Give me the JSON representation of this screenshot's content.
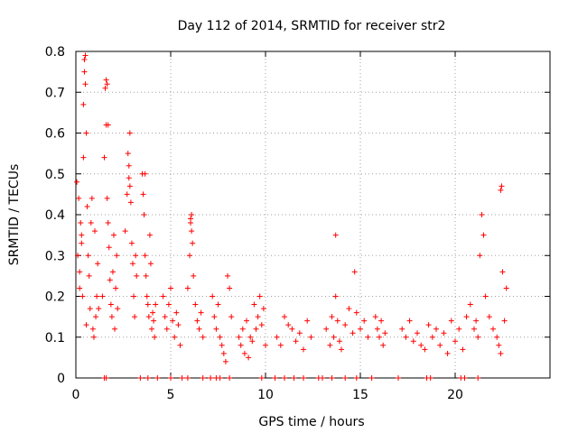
{
  "chart_data": {
    "type": "scatter",
    "title": "Day 112 of 2014, SRMTID for receiver str2",
    "xlabel": "GPS time / hours",
    "ylabel": "SRMTID / TECUs",
    "xlim": [
      0,
      25
    ],
    "ylim": [
      0,
      0.8
    ],
    "xticks": [
      "0",
      "5",
      "10",
      "15",
      "20"
    ],
    "xtick_values": [
      0,
      5,
      10,
      15,
      20
    ],
    "yticks": [
      "0",
      "0.1",
      "0.2",
      "0.3",
      "0.4",
      "0.5",
      "0.6",
      "0.7",
      "0.8"
    ],
    "ytick_values": [
      0,
      0.1,
      0.2,
      0.3,
      0.4,
      0.5,
      0.6,
      0.7,
      0.8
    ],
    "grid": true,
    "marker": "plus",
    "series_color": "#ff0000",
    "series": [
      {
        "name": "str2",
        "x": [
          0.05,
          0.1,
          0.15,
          0.2,
          0.25,
          0.3,
          0.35,
          0.4,
          0.45,
          0.5,
          0.5,
          0.55,
          0.6,
          0.65,
          0.7,
          0.75,
          0.8,
          0.85,
          0.9,
          0.95,
          1.0,
          1.05,
          1.1,
          1.15,
          1.2,
          0.2,
          0.3,
          0.4,
          0.45,
          0.55,
          1.4,
          1.5,
          1.55,
          1.6,
          1.65,
          1.7,
          1.75,
          1.8,
          1.85,
          1.9,
          1.95,
          2.0,
          2.05,
          2.1,
          2.15,
          2.2,
          1.6,
          1.65,
          1.7,
          2.6,
          2.7,
          2.75,
          2.8,
          2.85,
          2.9,
          2.95,
          3.0,
          3.05,
          3.1,
          3.15,
          3.2,
          2.8,
          2.85,
          3.5,
          3.55,
          3.6,
          3.65,
          3.7,
          3.75,
          3.8,
          3.85,
          3.9,
          3.95,
          4.0,
          4.05,
          4.1,
          4.15,
          4.2,
          3.65,
          4.6,
          4.7,
          4.8,
          4.9,
          5.0,
          5.1,
          5.2,
          5.3,
          5.4,
          5.5,
          5.9,
          6.0,
          6.05,
          6.1,
          6.15,
          6.2,
          6.3,
          6.4,
          6.5,
          6.6,
          6.7,
          6.05,
          6.1,
          7.2,
          7.3,
          7.4,
          7.5,
          7.6,
          7.7,
          7.8,
          7.9,
          8.0,
          8.1,
          8.2,
          8.6,
          8.7,
          8.8,
          8.9,
          9.0,
          9.1,
          9.2,
          9.3,
          9.4,
          9.5,
          9.6,
          9.7,
          9.8,
          9.9,
          10.0,
          10.6,
          10.8,
          11.0,
          11.2,
          11.4,
          11.6,
          11.8,
          12.0,
          12.2,
          12.4,
          13.2,
          13.4,
          13.5,
          13.6,
          13.7,
          13.8,
          13.9,
          14.0,
          14.2,
          14.4,
          14.6,
          14.8,
          15.0,
          15.2,
          15.4,
          13.7,
          14.7,
          15.8,
          15.9,
          16.0,
          16.1,
          16.2,
          16.3,
          17.2,
          17.4,
          17.6,
          17.8,
          18.0,
          18.2,
          18.4,
          18.6,
          18.8,
          19.0,
          19.2,
          19.4,
          19.6,
          19.8,
          20.0,
          20.2,
          20.4,
          20.6,
          20.8,
          21.0,
          21.1,
          21.2,
          21.3,
          21.4,
          21.5,
          21.6,
          21.8,
          22.0,
          22.2,
          22.3,
          22.4,
          22.5,
          22.6,
          22.7,
          22.4,
          22.45,
          1.5,
          1.6,
          3.4,
          3.8,
          4.3,
          5.0,
          5.6,
          5.9,
          6.7,
          7.1,
          7.4,
          7.6,
          8.1,
          9.8,
          10.5,
          11.0,
          11.5,
          12.0,
          12.8,
          13.0,
          13.5,
          14.2,
          14.8,
          15.6,
          17.0,
          18.5,
          18.7,
          20.3,
          20.5,
          21.2
        ],
        "y": [
          0.48,
          0.3,
          0.44,
          0.22,
          0.38,
          0.35,
          0.2,
          0.54,
          0.78,
          0.79,
          0.72,
          0.6,
          0.42,
          0.3,
          0.25,
          0.17,
          0.38,
          0.44,
          0.12,
          0.1,
          0.36,
          0.15,
          0.2,
          0.28,
          0.17,
          0.26,
          0.33,
          0.67,
          0.75,
          0.13,
          0.2,
          0.54,
          0.71,
          0.62,
          0.44,
          0.38,
          0.32,
          0.24,
          0.18,
          0.15,
          0.26,
          0.35,
          0.12,
          0.22,
          0.3,
          0.17,
          0.73,
          0.72,
          0.62,
          0.36,
          0.45,
          0.55,
          0.52,
          0.6,
          0.43,
          0.33,
          0.28,
          0.2,
          0.15,
          0.3,
          0.25,
          0.49,
          0.47,
          0.5,
          0.45,
          0.4,
          0.3,
          0.25,
          0.2,
          0.18,
          0.15,
          0.35,
          0.28,
          0.12,
          0.16,
          0.14,
          0.1,
          0.18,
          0.5,
          0.2,
          0.15,
          0.12,
          0.18,
          0.22,
          0.14,
          0.1,
          0.16,
          0.13,
          0.08,
          0.22,
          0.3,
          0.38,
          0.4,
          0.33,
          0.25,
          0.18,
          0.14,
          0.12,
          0.16,
          0.1,
          0.39,
          0.36,
          0.2,
          0.15,
          0.12,
          0.18,
          0.1,
          0.08,
          0.06,
          0.04,
          0.25,
          0.22,
          0.15,
          0.1,
          0.08,
          0.12,
          0.06,
          0.14,
          0.05,
          0.1,
          0.09,
          0.18,
          0.12,
          0.15,
          0.2,
          0.13,
          0.17,
          0.08,
          0.1,
          0.08,
          0.15,
          0.13,
          0.12,
          0.09,
          0.11,
          0.07,
          0.14,
          0.1,
          0.12,
          0.08,
          0.15,
          0.1,
          0.2,
          0.14,
          0.09,
          0.07,
          0.13,
          0.17,
          0.11,
          0.16,
          0.12,
          0.14,
          0.1,
          0.35,
          0.26,
          0.15,
          0.12,
          0.1,
          0.14,
          0.08,
          0.11,
          0.12,
          0.1,
          0.14,
          0.09,
          0.11,
          0.08,
          0.07,
          0.13,
          0.1,
          0.12,
          0.08,
          0.11,
          0.06,
          0.14,
          0.09,
          0.12,
          0.07,
          0.15,
          0.18,
          0.12,
          0.14,
          0.1,
          0.3,
          0.4,
          0.35,
          0.2,
          0.15,
          0.12,
          0.1,
          0.08,
          0.06,
          0.26,
          0.14,
          0.22,
          0.46,
          0.47,
          0,
          0,
          0,
          0,
          0,
          0,
          0,
          0,
          0,
          0,
          0,
          0,
          0,
          0,
          0,
          0,
          0,
          0,
          0,
          0,
          0,
          0,
          0,
          0,
          0,
          0,
          0,
          0,
          0,
          0
        ]
      }
    ]
  }
}
